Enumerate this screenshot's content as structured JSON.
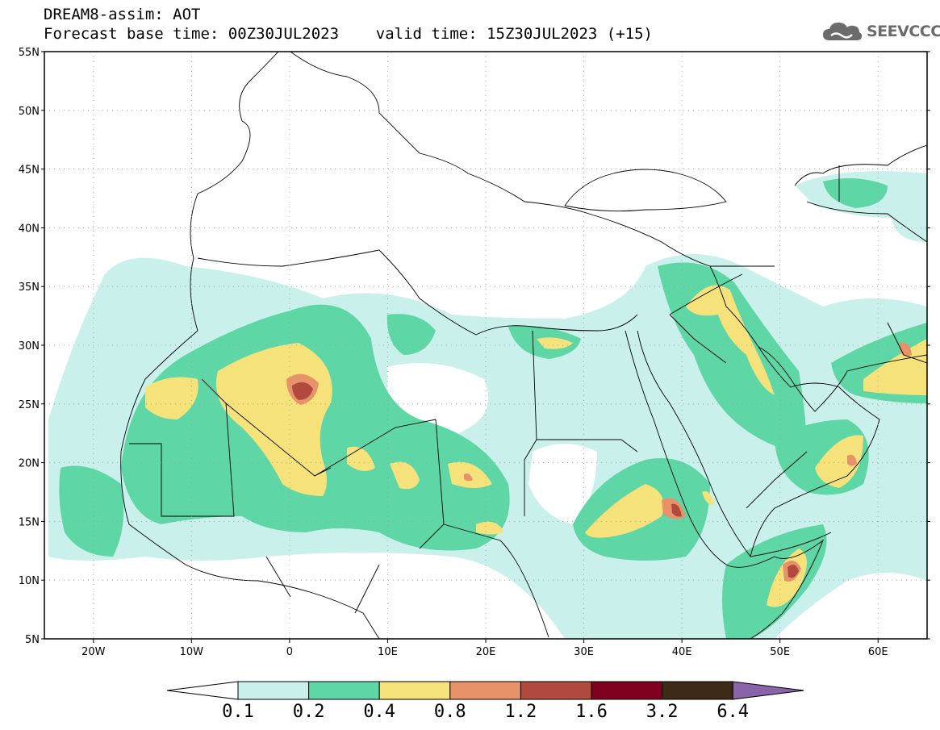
{
  "header": {
    "line1": "DREAM8-assim: AOT",
    "line2": "Forecast base time: 00Z30JUL2023    valid time: 15Z30JUL2023 (+15)"
  },
  "logo": {
    "text": "SEEVCCC",
    "icon": "cloud-icon"
  },
  "map": {
    "lon_range": [
      -25,
      65
    ],
    "lat_range": [
      5,
      55
    ],
    "lat_ticks": [
      "55N",
      "50N",
      "45N",
      "40N",
      "35N",
      "30N",
      "25N",
      "20N",
      "15N",
      "10N",
      "5N"
    ],
    "lon_ticks": [
      "20W",
      "10W",
      "0",
      "10E",
      "20E",
      "30E",
      "40E",
      "50E",
      "60E"
    ]
  },
  "colorbar": {
    "labels": [
      "0.1",
      "0.2",
      "0.4",
      "0.8",
      "1.2",
      "1.6",
      "3.2",
      "6.4"
    ],
    "colors": [
      "#ffffff",
      "#c9f0ea",
      "#5fd6a5",
      "#f5e27a",
      "#e8926a",
      "#b04a3e",
      "#800020",
      "#3d2a17",
      "#8a63a8"
    ]
  }
}
